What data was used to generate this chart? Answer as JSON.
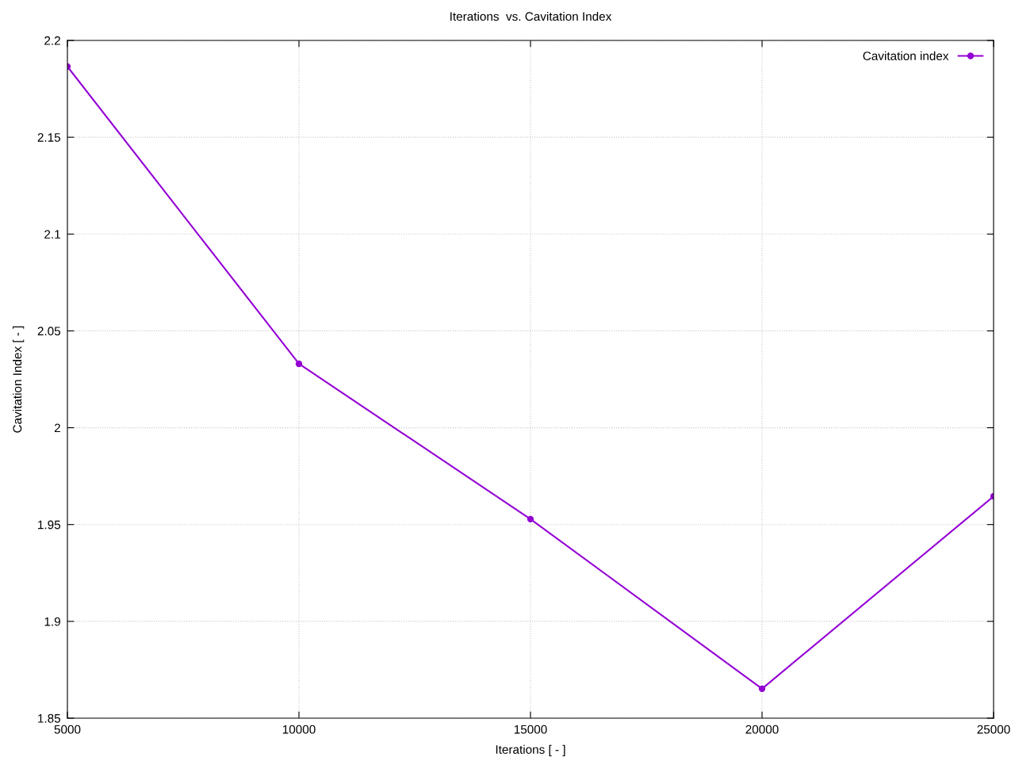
{
  "chart_data": {
    "type": "line",
    "title": "Iterations  vs. Cavitation Index",
    "xlabel": "Iterations [ - ]",
    "ylabel": "Cavitation Index [ - ]",
    "x": [
      5000,
      10000,
      15000,
      20000,
      25000
    ],
    "series": [
      {
        "name": "Cavitation index",
        "color": "#9400d3",
        "values": [
          2.1865,
          2.033,
          1.9528,
          1.8652,
          1.9646
        ]
      }
    ],
    "xlim": [
      5000,
      25000
    ],
    "xticks": [
      5000,
      10000,
      15000,
      20000,
      25000
    ],
    "ylim": [
      1.85,
      2.2
    ],
    "yticks": [
      1.85,
      1.9,
      1.95,
      2,
      2.05,
      2.1,
      2.15,
      2.2
    ],
    "grid": true,
    "legend": "top right",
    "marker": "circle",
    "line_style": "solid"
  }
}
